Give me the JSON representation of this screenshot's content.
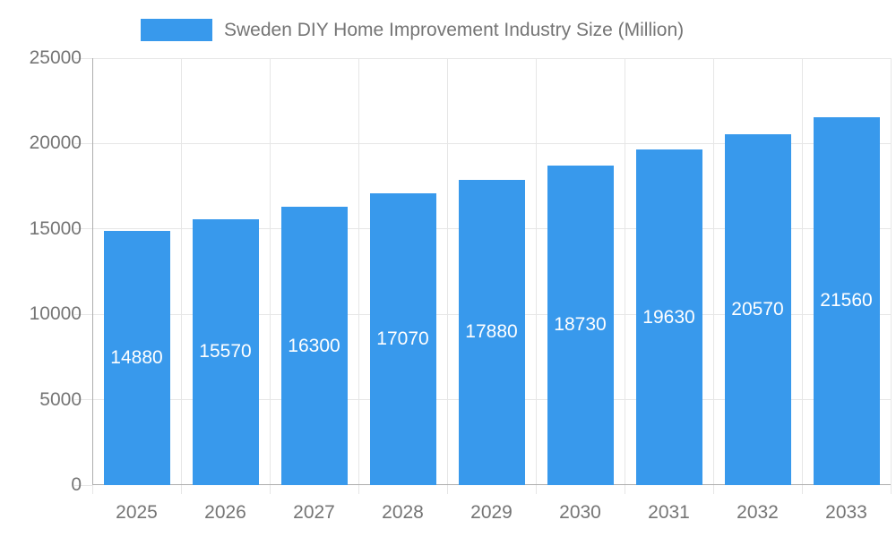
{
  "chart_data": {
    "type": "bar",
    "title": "Sweden DIY Home Improvement Industry Size (Million)",
    "categories": [
      "2025",
      "2026",
      "2027",
      "2028",
      "2029",
      "2030",
      "2031",
      "2032",
      "2033"
    ],
    "values": [
      14880,
      15570,
      16300,
      17070,
      17880,
      18730,
      19630,
      20570,
      21560
    ],
    "data_labels": [
      "14880",
      "15570",
      "16300",
      "17070",
      "17880",
      "18730",
      "19630",
      "20570",
      "21560"
    ],
    "xlabel": "",
    "ylabel": "",
    "ylim": [
      0,
      25000
    ],
    "yticks": [
      0,
      5000,
      10000,
      15000,
      20000,
      25000
    ],
    "ytick_labels": [
      "0",
      "5000",
      "10000",
      "15000",
      "20000",
      "25000"
    ],
    "grid": true,
    "legend_position": "top",
    "colors": {
      "bar": "#3899EC",
      "bar_label": "#FFFFFF",
      "axis_text": "#757575",
      "gridline": "#E6E6E6",
      "axis_line": "#ADADAD",
      "background": "#FFFFFF"
    }
  }
}
